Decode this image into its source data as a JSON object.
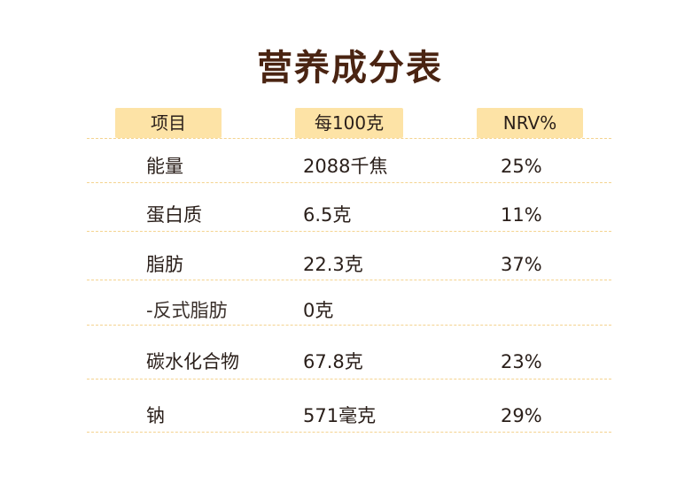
{
  "title": "营养成分表",
  "table": {
    "headers": [
      "项目",
      "每100克",
      "NRV%"
    ],
    "rows": [
      {
        "item": "能量",
        "per100g": "2088千焦",
        "nrv": "25%"
      },
      {
        "item": "蛋白质",
        "per100g": "6.5克",
        "nrv": "11%"
      },
      {
        "item": "脂肪",
        "per100g": "22.3克",
        "nrv": "37%"
      },
      {
        "item": "-反式脂肪",
        "per100g": "0克",
        "nrv": ""
      },
      {
        "item": "碳水化合物",
        "per100g": "67.8克",
        "nrv": "23%"
      },
      {
        "item": "钠",
        "per100g": "571毫克",
        "nrv": "29%"
      }
    ]
  },
  "colors": {
    "title": "#4a2412",
    "header_bg": "#fde3a6",
    "divider": "#f4d38f",
    "text": "#2a1f1a"
  }
}
